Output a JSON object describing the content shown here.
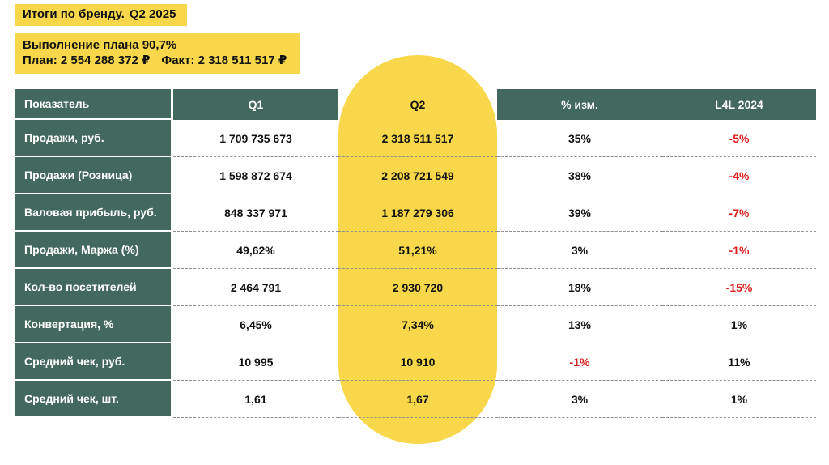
{
  "title": {
    "prefix": "Итоги по бренду.",
    "period": "Q2 2025"
  },
  "plan": {
    "line1": "Выполнение плана 90,7%",
    "plan_part": "План: 2 554 288 372 ₽",
    "fact_part": "Факт: 2 318 511 517 ₽"
  },
  "colors": {
    "teal": "#43695F",
    "yellow": "#F8D84A",
    "negative": "#DF1F1F",
    "text_dark": "#111111"
  },
  "chart_data": {
    "type": "table",
    "title": "Итоги по бренду. Q2 2025",
    "highlighted_column": "Q2",
    "columns": [
      "Показатель",
      "Q1",
      "Q2",
      "% изм.",
      "L4L 2024"
    ],
    "rows": [
      [
        "Продажи, руб.",
        "1 709 735 673",
        "2 318 511 517",
        "35%",
        "-5%"
      ],
      [
        "Продажи (Розница)",
        "1 598 872 674",
        "2 208 721 549",
        "38%",
        "-4%"
      ],
      [
        "Валовая прибыль, руб.",
        "848 337 971",
        "1 187 279 306",
        "39%",
        "-7%"
      ],
      [
        "Продажи, Маржа (%)",
        "49,62%",
        "51,21%",
        "3%",
        "-1%"
      ],
      [
        "Кол-во посетителей",
        "2 464 791",
        "2 930 720",
        "18%",
        "-15%"
      ],
      [
        "Конвертация, %",
        "6,45%",
        "7,34%",
        "13%",
        "1%"
      ],
      [
        "Средний чек, руб.",
        "10 995",
        "10 910",
        "-1%",
        "11%"
      ],
      [
        "Средний чек, шт.",
        "1,61",
        "1,67",
        "3%",
        "1%"
      ]
    ]
  }
}
